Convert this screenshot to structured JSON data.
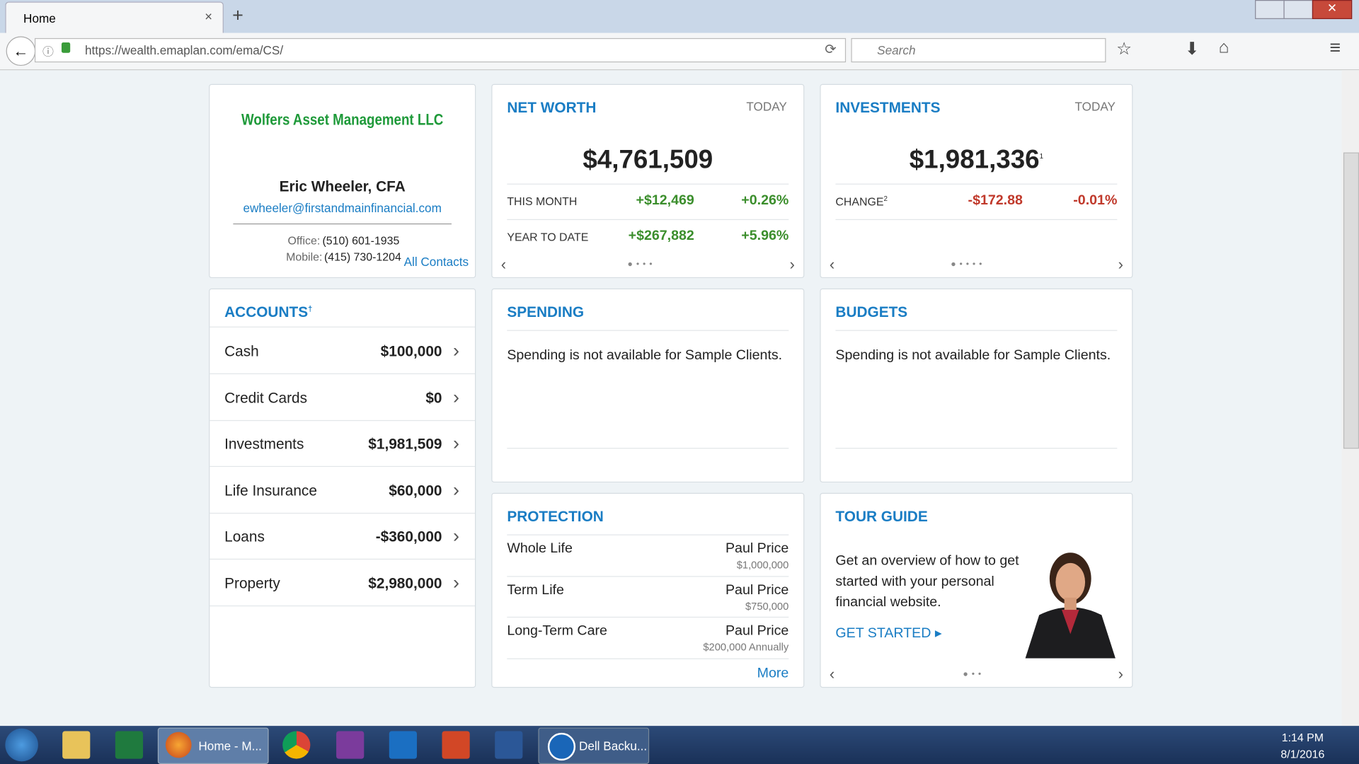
{
  "browser": {
    "tab": "Home",
    "url": "https://wealth.emaplan.com/ema/CS/",
    "search": "Search"
  },
  "advisor": {
    "firm": "Wolfers Asset Management LLC",
    "name": "Eric Wheeler, CFA",
    "email": "ewheeler@firstandmainfinancial.com",
    "office_label": "Office:",
    "office": "(510) 601-1935",
    "mobile_label": "Mobile:",
    "mobile": "(415) 730-1204",
    "link": "All Contacts"
  },
  "net_worth": {
    "title": "NET WORTH",
    "period": "TODAY",
    "total": "$4,761,509",
    "rows": [
      {
        "label": "THIS MONTH",
        "amount": "+$12,469",
        "percent": "+0.26%"
      },
      {
        "label": "YEAR TO DATE",
        "amount": "+$267,882",
        "percent": "+5.96%"
      }
    ]
  },
  "investments": {
    "title": "INVESTMENTS",
    "period": "TODAY",
    "total": "$1,981,336",
    "total_note": "1",
    "rows": [
      {
        "label": "CHANGE",
        "note": "2",
        "amount": "-$172.88",
        "percent": "-0.01%"
      }
    ]
  },
  "accounts": {
    "title": "ACCOUNTS",
    "note": "†",
    "rows": [
      {
        "name": "Cash",
        "amount": "$100,000"
      },
      {
        "name": "Credit Cards",
        "amount": "$0"
      },
      {
        "name": "Investments",
        "amount": "$1,981,509"
      },
      {
        "name": "Life Insurance",
        "amount": "$60,000"
      },
      {
        "name": "Loans",
        "amount": "-$360,000"
      },
      {
        "name": "Property",
        "amount": "$2,980,000"
      }
    ]
  },
  "spending": {
    "title": "SPENDING",
    "message": "Spending is not available for Sample Clients."
  },
  "budgets": {
    "title": "BUDGETS",
    "message": "Spending is not available for Sample Clients."
  },
  "protection": {
    "title": "PROTECTION",
    "rows": [
      {
        "type": "Whole Life",
        "insured": "Paul Price",
        "amount": "$1,000,000"
      },
      {
        "type": "Term Life",
        "insured": "Paul Price",
        "amount": "$750,000"
      },
      {
        "type": "Long-Term Care",
        "insured": "Paul Price",
        "amount": "$200,000 Annually"
      }
    ],
    "more": "More"
  },
  "tour_guide": {
    "title": "TOUR GUIDE",
    "text": "Get an overview of how to get started with your personal financial website.",
    "link": "GET STARTED"
  },
  "taskbar": {
    "items": [
      "Home - M...",
      "Dell Backu..."
    ],
    "time": "1:14 PM",
    "date": "8/1/2016"
  }
}
